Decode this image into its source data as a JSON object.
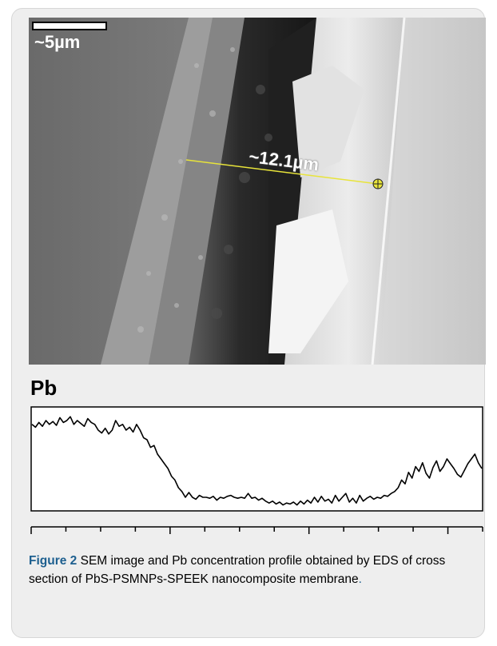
{
  "figure": {
    "scale_bar_label": "~5µm",
    "measurement_label": "~12.1µm",
    "profile_element": "Pb",
    "caption_label": "Figure 2",
    "caption_text": " SEM image and Pb concentration profile obtained by EDS of cross section of PbS-PSMNPs-SPEEK nanocomposite membrane",
    "caption_end": "."
  },
  "colors": {
    "caption_label": "#1d5f8f",
    "measurement_line": "#e8e43a",
    "profile_line": "#000000"
  },
  "chart_data": {
    "type": "line",
    "title": "Pb",
    "xlabel": "",
    "ylabel": "",
    "x_ticks_count": 14,
    "y": [
      0.86,
      0.83,
      0.88,
      0.84,
      0.9,
      0.86,
      0.89,
      0.85,
      0.93,
      0.88,
      0.9,
      0.94,
      0.86,
      0.9,
      0.87,
      0.84,
      0.92,
      0.88,
      0.86,
      0.8,
      0.77,
      0.82,
      0.76,
      0.8,
      0.9,
      0.84,
      0.86,
      0.8,
      0.83,
      0.78,
      0.86,
      0.8,
      0.72,
      0.7,
      0.62,
      0.64,
      0.55,
      0.5,
      0.45,
      0.4,
      0.32,
      0.28,
      0.2,
      0.16,
      0.1,
      0.15,
      0.1,
      0.08,
      0.12,
      0.1,
      0.1,
      0.09,
      0.11,
      0.07,
      0.1,
      0.09,
      0.11,
      0.12,
      0.1,
      0.09,
      0.1,
      0.09,
      0.14,
      0.09,
      0.1,
      0.07,
      0.09,
      0.06,
      0.04,
      0.06,
      0.03,
      0.05,
      0.02,
      0.04,
      0.03,
      0.05,
      0.02,
      0.06,
      0.03,
      0.07,
      0.04,
      0.1,
      0.05,
      0.11,
      0.06,
      0.08,
      0.04,
      0.12,
      0.06,
      0.1,
      0.14,
      0.05,
      0.09,
      0.04,
      0.12,
      0.06,
      0.09,
      0.11,
      0.08,
      0.1,
      0.09,
      0.12,
      0.11,
      0.14,
      0.16,
      0.2,
      0.28,
      0.24,
      0.36,
      0.3,
      0.42,
      0.37,
      0.46,
      0.35,
      0.3,
      0.41,
      0.48,
      0.37,
      0.42,
      0.5,
      0.45,
      0.4,
      0.34,
      0.31,
      0.38,
      0.45,
      0.5,
      0.55,
      0.46,
      0.4
    ]
  }
}
